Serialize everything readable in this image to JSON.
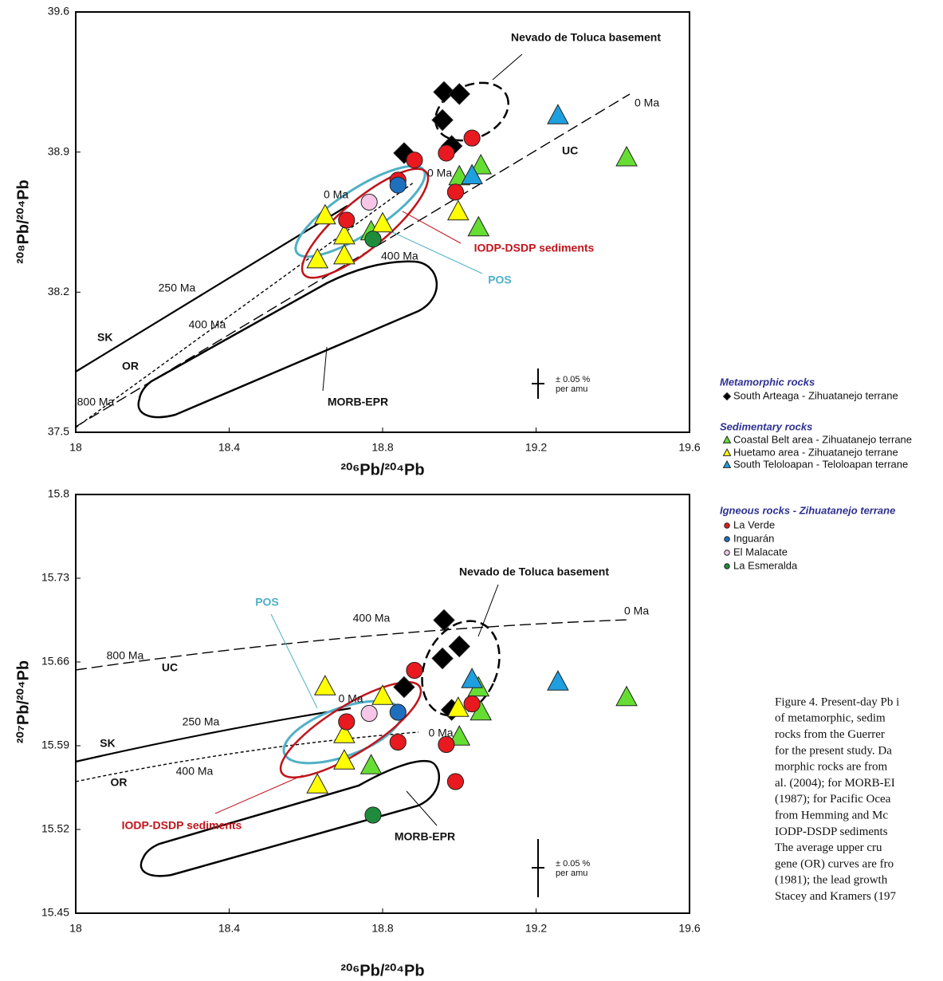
{
  "chart_data": [
    {
      "type": "scatter",
      "x_label": "²⁰⁶Pb/²⁰⁴Pb",
      "y_label": "²⁰⁸Pb/²⁰⁴Pb",
      "xlim": [
        18,
        19.6
      ],
      "ylim": [
        37.5,
        39.6
      ],
      "xticks": [
        18,
        18.4,
        18.8,
        19.2,
        19.6
      ],
      "yticks": [
        37.5,
        38.2,
        38.9,
        39.6
      ],
      "series": [
        {
          "name": "South Arteaga - Zihuatanejo terrane",
          "marker": "diamond",
          "color": "#000000",
          "x": [
            18.96,
            19.0,
            18.956,
            18.856,
            18.98
          ],
          "values": [
            39.2,
            39.19,
            39.06,
            38.895,
            38.93
          ]
        },
        {
          "name": "Coastal Belt area - Zihuatanejo terrane",
          "marker": "triangle",
          "color": "#66dd33",
          "x": [
            18.77,
            19.0,
            19.056,
            19.05,
            19.436
          ],
          "values": [
            38.5,
            38.775,
            38.83,
            38.52,
            38.87
          ]
        },
        {
          "name": "Huetamo area - Zihuatanejo terrane",
          "marker": "triangle",
          "color": "#ffff00",
          "x": [
            18.65,
            18.7,
            18.7,
            18.63,
            18.8,
            18.997
          ],
          "values": [
            38.58,
            38.48,
            38.38,
            38.36,
            38.54,
            38.6
          ]
        },
        {
          "name": "South Teloloapan - Teloloapan terrane",
          "marker": "triangle",
          "color": "#1ea0e0",
          "x": [
            19.257,
            19.033
          ],
          "values": [
            39.08,
            38.78
          ]
        },
        {
          "name": "La Verde",
          "marker": "circle",
          "color": "#e8191f",
          "x": [
            18.706,
            18.84,
            18.883,
            18.966,
            19.033,
            18.99
          ],
          "values": [
            38.56,
            38.76,
            38.86,
            38.895,
            38.97,
            38.7
          ]
        },
        {
          "name": "Inguarán",
          "marker": "circle",
          "color": "#1f6fbf",
          "x": [
            18.84
          ],
          "values": [
            38.735
          ]
        },
        {
          "name": "El Malacate",
          "marker": "circle",
          "color": "#f5c6e6",
          "x": [
            18.765
          ],
          "values": [
            38.65
          ]
        },
        {
          "name": "La Esmeralda",
          "marker": "circle",
          "color": "#1e8c3c",
          "x": [
            18.775
          ],
          "values": [
            38.465
          ]
        }
      ],
      "annotations": [
        "Nevado de Toluca basement",
        "0 Ma",
        "UC",
        "0 Ma",
        "0 Ma",
        "IODP-DSDP sediments",
        "400 Ma",
        "POS",
        "250 Ma",
        "400 Ma",
        "SK",
        "OR",
        "800 Ma",
        "MORB-EPR",
        "± 0.05 %",
        "per amu"
      ]
    },
    {
      "type": "scatter",
      "x_label": "²⁰⁶Pb/²⁰⁴Pb",
      "y_label": "²⁰⁷Pb/²⁰⁴Pb",
      "xlim": [
        18,
        19.6
      ],
      "ylim": [
        15.45,
        15.8
      ],
      "xticks": [
        18,
        18.4,
        18.8,
        19.2,
        19.6
      ],
      "yticks": [
        15.45,
        15.52,
        15.59,
        15.66,
        15.73,
        15.8
      ],
      "series": [
        {
          "name": "South Arteaga - Zihuatanejo terrane",
          "marker": "diamond",
          "color": "#000000",
          "x": [
            18.96,
            19.0,
            18.956,
            18.856,
            18.98
          ],
          "values": [
            15.695,
            15.673,
            15.663,
            15.639,
            15.62
          ]
        },
        {
          "name": "Coastal Belt area - Zihuatanejo terrane",
          "marker": "triangle",
          "color": "#66dd33",
          "x": [
            18.77,
            19.0,
            19.056,
            19.05,
            19.436
          ],
          "values": [
            15.573,
            15.597,
            15.618,
            15.638,
            15.63
          ]
        },
        {
          "name": "Huetamo area - Zihuatanejo terrane",
          "marker": "triangle",
          "color": "#ffff00",
          "x": [
            18.65,
            18.7,
            18.7,
            18.63,
            18.8,
            18.997
          ],
          "values": [
            15.639,
            15.599,
            15.577,
            15.557,
            15.631,
            15.621
          ]
        },
        {
          "name": "South Teloloapan - Teloloapan terrane",
          "marker": "triangle",
          "color": "#1ea0e0",
          "x": [
            19.257,
            19.033
          ],
          "values": [
            15.643,
            15.645
          ]
        },
        {
          "name": "La Verde",
          "marker": "circle",
          "color": "#e8191f",
          "x": [
            18.706,
            18.84,
            18.883,
            18.966,
            19.033,
            18.99
          ],
          "values": [
            15.61,
            15.593,
            15.653,
            15.591,
            15.625,
            15.56
          ]
        },
        {
          "name": "Inguarán",
          "marker": "circle",
          "color": "#1f6fbf",
          "x": [
            18.84
          ],
          "values": [
            15.618
          ]
        },
        {
          "name": "El Malacate",
          "marker": "circle",
          "color": "#f5c6e6",
          "x": [
            18.765
          ],
          "values": [
            15.617
          ]
        },
        {
          "name": "La Esmeralda",
          "marker": "circle",
          "color": "#1e8c3c",
          "x": [
            18.775
          ],
          "values": [
            15.532
          ]
        }
      ],
      "annotations": [
        "Nevado de Toluca basement",
        "0 Ma",
        "400 Ma",
        "POS",
        "800 Ma",
        "UC",
        "0 Ma",
        "250 Ma",
        "0 Ma",
        "SK",
        "400 Ma",
        "OR",
        "IODP-DSDP sediments",
        "MORB-EPR",
        "± 0.05 %",
        "per amu"
      ]
    }
  ],
  "legend_headings": [
    "Metamorphic rocks",
    "Sedimentary rocks",
    "Igneous rocks - Zihuatanejo terrane"
  ],
  "caption": [
    "Figure 4. Present-day Pb i",
    "of metamorphic, sedim",
    "rocks from the Guerrer",
    "for the present study. Da",
    "morphic rocks are from",
    "al. (2004); for MORB-EI",
    "(1987); for Pacific Ocea",
    "from Hemming and Mc",
    "IODP-DSDP sediments",
    "The average upper cru",
    "gene (OR) curves are fro",
    "(1981); the lead growth",
    "Stacey and Kramers (197"
  ]
}
